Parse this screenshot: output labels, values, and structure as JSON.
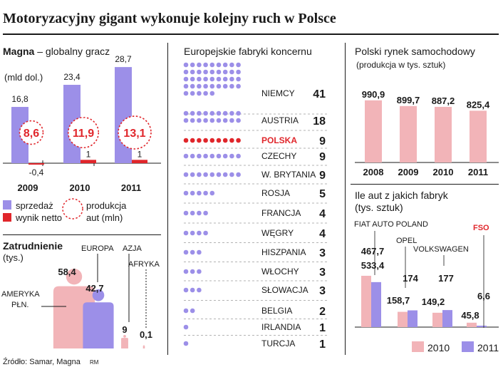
{
  "title": "Motoryzacyjny gigant wykonuje kolejny ruch w Polsce",
  "colors": {
    "purple": "#9c8fe8",
    "red": "#e0262b",
    "pink": "#f2b4b8",
    "dark": "#1a1a1a",
    "gray": "#666666"
  },
  "source": "Źródło: Samar, Magna",
  "author": "RM",
  "chart_data": [
    {
      "type": "bar",
      "panel": "magna",
      "heading_bold": "Magna",
      "heading_rest": "– globalny gracz",
      "unit": "(mld dol.)",
      "categories": [
        "2009",
        "2010",
        "2011"
      ],
      "sales_labels": [
        "16,8",
        "23,4",
        "28,7"
      ],
      "sales": [
        16.8,
        23.4,
        28.7
      ],
      "net_labels": [
        "-0,4",
        "1",
        "1"
      ],
      "net": [
        -0.4,
        1,
        1
      ],
      "production_labels": [
        "8,6",
        "11,9",
        "13,1"
      ],
      "production": [
        8.6,
        11.9,
        13.1
      ],
      "legend": {
        "sales": "sprzedaż",
        "net": "wynik netto",
        "production_line1": "produkcja",
        "production_line2": "aut (mln)"
      }
    },
    {
      "type": "bar",
      "panel": "employment",
      "heading_bold": "Zatrudnienie",
      "unit": "(tys.)",
      "regions": [
        {
          "name_line1": "AMERYKA",
          "name_line2": "PŁN.",
          "label": "58,4",
          "value": 58.4
        },
        {
          "name_line1": "EUROPA",
          "name_line2": "",
          "label": "42,7",
          "value": 42.7
        },
        {
          "name_line1": "AZJA",
          "name_line2": "",
          "label": "9",
          "value": 9
        },
        {
          "name_line1": "AFRYKA",
          "name_line2": "",
          "label": "0,1",
          "value": 0.1
        }
      ]
    },
    {
      "type": "table",
      "panel": "factories",
      "heading": "Europejskie fabryki koncernu",
      "rows": [
        {
          "country": "NIEMCY",
          "count": 41,
          "label": "41",
          "highlight": false
        },
        {
          "country": "AUSTRIA",
          "count": 18,
          "label": "18",
          "highlight": false
        },
        {
          "country": "POLSKA",
          "count": 9,
          "label": "9",
          "highlight": true
        },
        {
          "country": "CZECHY",
          "count": 9,
          "label": "9",
          "highlight": false
        },
        {
          "country": "W. BRYTANIA",
          "count": 9,
          "label": "9",
          "highlight": false
        },
        {
          "country": "ROSJA",
          "count": 5,
          "label": "5",
          "highlight": false
        },
        {
          "country": "FRANCJA",
          "count": 4,
          "label": "4",
          "highlight": false
        },
        {
          "country": "WĘGRY",
          "count": 4,
          "label": "4",
          "highlight": false
        },
        {
          "country": "HISZPANIA",
          "count": 3,
          "label": "3",
          "highlight": false
        },
        {
          "country": "WŁOCHY",
          "count": 3,
          "label": "3",
          "highlight": false
        },
        {
          "country": "SŁOWACJA",
          "count": 3,
          "label": "3",
          "highlight": false
        },
        {
          "country": "BELGIA",
          "count": 2,
          "label": "2",
          "highlight": false
        },
        {
          "country": "IRLANDIA",
          "count": 1,
          "label": "1",
          "highlight": false
        },
        {
          "country": "TURCJA",
          "count": 1,
          "label": "1",
          "highlight": false
        }
      ]
    },
    {
      "type": "bar",
      "panel": "market",
      "heading": "Polski rynek samochodowy",
      "unit": "(produkcja w tys. sztuk)",
      "categories": [
        "2008",
        "2009",
        "2010",
        "2011"
      ],
      "labels": [
        "990,9",
        "899,7",
        "887,2",
        "825,4"
      ],
      "values": [
        990.9,
        899.7,
        887.2,
        825.4
      ]
    },
    {
      "type": "bar",
      "panel": "factories-output",
      "heading_line1": "Ile aut z jakich fabryk",
      "heading_line2": "(tys. sztuk)",
      "series": [
        {
          "name": "2010"
        },
        {
          "name": "2011"
        }
      ],
      "groups": [
        {
          "name": "FIAT AUTO POLAND",
          "highlight": false,
          "labels": [
            "533,4",
            "467,7"
          ],
          "values": [
            533.4,
            467.7
          ]
        },
        {
          "name": "OPEL",
          "highlight": false,
          "labels": [
            "158,7",
            "174"
          ],
          "values": [
            158.7,
            174
          ]
        },
        {
          "name": "VOLKSWAGEN",
          "highlight": false,
          "labels": [
            "149,2",
            "177"
          ],
          "values": [
            149.2,
            177
          ]
        },
        {
          "name": "FSO",
          "highlight": true,
          "labels": [
            "45,8",
            "6,6"
          ],
          "values": [
            45.8,
            6.6
          ]
        }
      ]
    }
  ]
}
